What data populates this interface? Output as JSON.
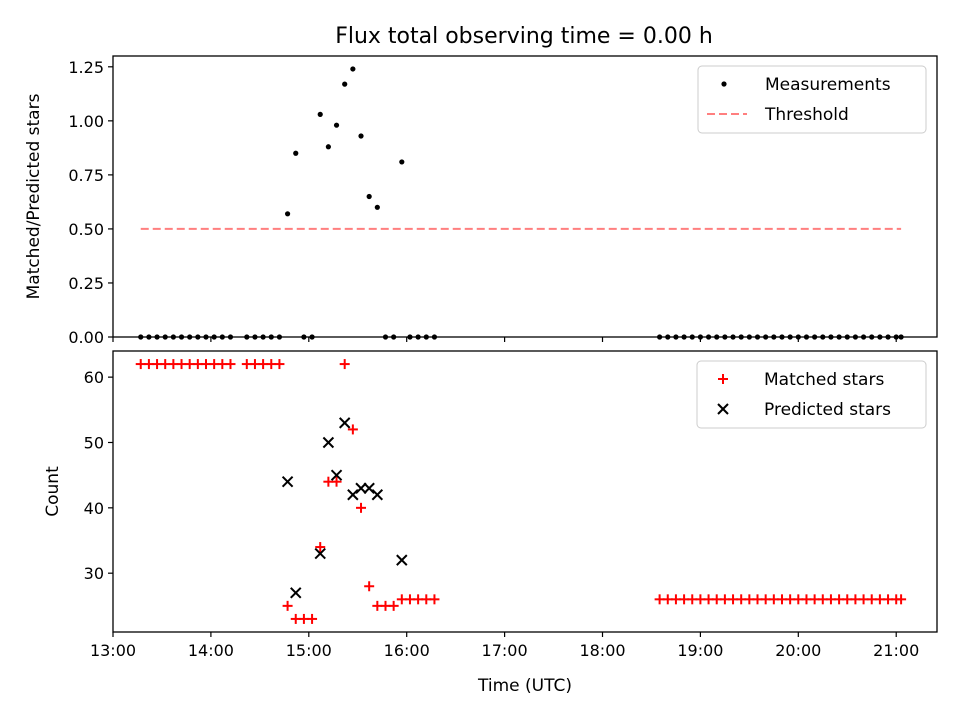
{
  "figure": {
    "title": "Flux total observing time = 0.00 h"
  },
  "chart_data": [
    {
      "type": "scatter",
      "ylabel": "Matched/Predicted stars",
      "xlabel": "",
      "xlim": [
        "13:00",
        "21:25"
      ],
      "ylim": [
        0.0,
        1.3
      ],
      "x_tick_values": [
        "13:00",
        "14:00",
        "15:00",
        "16:00",
        "17:00",
        "18:00",
        "19:00",
        "20:00",
        "21:00"
      ],
      "y_ticks": [
        "0.00",
        "0.25",
        "0.50",
        "0.75",
        "1.00",
        "1.25"
      ],
      "legend_position": "top-right",
      "legend": [
        "Measurements",
        "Threshold"
      ],
      "series": [
        {
          "name": "Measurements",
          "marker": "dot",
          "color": "#000000",
          "points": [
            [
              "13:17",
              0
            ],
            [
              "13:22",
              0
            ],
            [
              "13:27",
              0
            ],
            [
              "13:32",
              0
            ],
            [
              "13:37",
              0
            ],
            [
              "13:42",
              0
            ],
            [
              "13:47",
              0
            ],
            [
              "13:52",
              0
            ],
            [
              "13:57",
              0
            ],
            [
              "14:02",
              0
            ],
            [
              "14:07",
              0
            ],
            [
              "14:12",
              0
            ],
            [
              "14:22",
              0
            ],
            [
              "14:27",
              0
            ],
            [
              "14:32",
              0
            ],
            [
              "14:37",
              0
            ],
            [
              "14:42",
              0
            ],
            [
              "14:47",
              0.57
            ],
            [
              "14:52",
              0.85
            ],
            [
              "14:57",
              0
            ],
            [
              "15:02",
              0
            ],
            [
              "15:07",
              1.03
            ],
            [
              "15:12",
              0.88
            ],
            [
              "15:17",
              0.98
            ],
            [
              "15:22",
              1.17
            ],
            [
              "15:27",
              1.24
            ],
            [
              "15:32",
              0.93
            ],
            [
              "15:37",
              0.65
            ],
            [
              "15:42",
              0.6
            ],
            [
              "15:47",
              0
            ],
            [
              "15:52",
              0
            ],
            [
              "15:57",
              0.81
            ],
            [
              "16:02",
              0
            ],
            [
              "16:07",
              0
            ],
            [
              "16:12",
              0
            ],
            [
              "16:17",
              0
            ],
            [
              "18:35",
              0
            ],
            [
              "18:40",
              0
            ],
            [
              "18:45",
              0
            ],
            [
              "18:50",
              0
            ],
            [
              "18:55",
              0
            ],
            [
              "19:00",
              0
            ],
            [
              "19:05",
              0
            ],
            [
              "19:10",
              0
            ],
            [
              "19:15",
              0
            ],
            [
              "19:20",
              0
            ],
            [
              "19:25",
              0
            ],
            [
              "19:30",
              0
            ],
            [
              "19:35",
              0
            ],
            [
              "19:40",
              0
            ],
            [
              "19:45",
              0
            ],
            [
              "19:50",
              0
            ],
            [
              "19:55",
              0
            ],
            [
              "20:00",
              0
            ],
            [
              "20:05",
              0
            ],
            [
              "20:10",
              0
            ],
            [
              "20:15",
              0
            ],
            [
              "20:20",
              0
            ],
            [
              "20:25",
              0
            ],
            [
              "20:30",
              0
            ],
            [
              "20:35",
              0
            ],
            [
              "20:40",
              0
            ],
            [
              "20:45",
              0
            ],
            [
              "20:50",
              0
            ],
            [
              "20:55",
              0
            ],
            [
              "21:00",
              0
            ],
            [
              "21:03",
              0
            ]
          ]
        },
        {
          "name": "Threshold",
          "type": "line",
          "style": "dashed",
          "color": "#ff7f7f",
          "points": [
            [
              "13:17",
              0.5
            ],
            [
              "21:03",
              0.5
            ]
          ]
        }
      ]
    },
    {
      "type": "scatter",
      "ylabel": "Count",
      "xlabel": "Time (UTC)",
      "xlim": [
        "13:00",
        "21:25"
      ],
      "ylim": [
        21,
        64
      ],
      "x_ticks": [
        "13:00",
        "14:00",
        "15:00",
        "16:00",
        "17:00",
        "18:00",
        "19:00",
        "20:00",
        "21:00"
      ],
      "y_ticks": [
        "30",
        "40",
        "50",
        "60"
      ],
      "legend_position": "top-right",
      "legend": [
        "Matched stars",
        "Predicted stars"
      ],
      "series": [
        {
          "name": "Matched stars",
          "marker": "plus",
          "color": "#ff0000",
          "points": [
            [
              "13:17",
              62
            ],
            [
              "13:22",
              62
            ],
            [
              "13:27",
              62
            ],
            [
              "13:32",
              62
            ],
            [
              "13:37",
              62
            ],
            [
              "13:42",
              62
            ],
            [
              "13:47",
              62
            ],
            [
              "13:52",
              62
            ],
            [
              "13:57",
              62
            ],
            [
              "14:02",
              62
            ],
            [
              "14:07",
              62
            ],
            [
              "14:12",
              62
            ],
            [
              "14:22",
              62
            ],
            [
              "14:27",
              62
            ],
            [
              "14:32",
              62
            ],
            [
              "14:37",
              62
            ],
            [
              "14:42",
              62
            ],
            [
              "14:47",
              25
            ],
            [
              "14:52",
              23
            ],
            [
              "14:57",
              23
            ],
            [
              "15:02",
              23
            ],
            [
              "15:07",
              34
            ],
            [
              "15:12",
              44
            ],
            [
              "15:17",
              44
            ],
            [
              "15:22",
              62
            ],
            [
              "15:27",
              52
            ],
            [
              "15:32",
              40
            ],
            [
              "15:37",
              28
            ],
            [
              "15:42",
              25
            ],
            [
              "15:47",
              25
            ],
            [
              "15:52",
              25
            ],
            [
              "15:57",
              26
            ],
            [
              "16:02",
              26
            ],
            [
              "16:07",
              26
            ],
            [
              "16:12",
              26
            ],
            [
              "16:17",
              26
            ],
            [
              "18:35",
              26
            ],
            [
              "18:40",
              26
            ],
            [
              "18:45",
              26
            ],
            [
              "18:50",
              26
            ],
            [
              "18:55",
              26
            ],
            [
              "19:00",
              26
            ],
            [
              "19:05",
              26
            ],
            [
              "19:10",
              26
            ],
            [
              "19:15",
              26
            ],
            [
              "19:20",
              26
            ],
            [
              "19:25",
              26
            ],
            [
              "19:30",
              26
            ],
            [
              "19:35",
              26
            ],
            [
              "19:40",
              26
            ],
            [
              "19:45",
              26
            ],
            [
              "19:50",
              26
            ],
            [
              "19:55",
              26
            ],
            [
              "20:00",
              26
            ],
            [
              "20:05",
              26
            ],
            [
              "20:10",
              26
            ],
            [
              "20:15",
              26
            ],
            [
              "20:20",
              26
            ],
            [
              "20:25",
              26
            ],
            [
              "20:30",
              26
            ],
            [
              "20:35",
              26
            ],
            [
              "20:40",
              26
            ],
            [
              "20:45",
              26
            ],
            [
              "20:50",
              26
            ],
            [
              "20:55",
              26
            ],
            [
              "21:00",
              26
            ],
            [
              "21:03",
              26
            ]
          ]
        },
        {
          "name": "Predicted stars",
          "marker": "x",
          "color": "#000000",
          "points": [
            [
              "14:47",
              44
            ],
            [
              "14:52",
              27
            ],
            [
              "15:07",
              33
            ],
            [
              "15:12",
              50
            ],
            [
              "15:17",
              45
            ],
            [
              "15:22",
              53
            ],
            [
              "15:27",
              42
            ],
            [
              "15:32",
              43
            ],
            [
              "15:37",
              43
            ],
            [
              "15:42",
              42
            ],
            [
              "15:57",
              32
            ]
          ]
        }
      ]
    }
  ]
}
